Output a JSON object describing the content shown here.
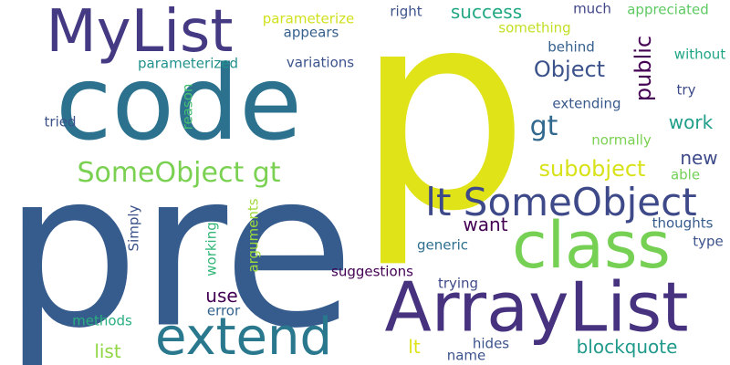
{
  "words": [
    {
      "text": "p",
      "color": "#dfe318"
    },
    {
      "text": "pre",
      "color": "#365c8d"
    },
    {
      "text": "code",
      "color": "#2c728e"
    },
    {
      "text": "ArrayList",
      "color": "#46327e"
    },
    {
      "text": "MyList",
      "color": "#443a83"
    },
    {
      "text": "class",
      "color": "#75d054"
    },
    {
      "text": "extend",
      "color": "#2a788e"
    },
    {
      "text": "lt SomeObject",
      "color": "#3e4989"
    },
    {
      "text": "SomeObject gt",
      "color": "#7ad151"
    },
    {
      "text": "subobject",
      "color": "#d8e219"
    },
    {
      "text": "public",
      "color": "#440154"
    },
    {
      "text": "gt",
      "color": "#31688e"
    },
    {
      "text": "Object",
      "color": "#3b528b"
    },
    {
      "text": "work",
      "color": "#1f9e89"
    },
    {
      "text": "new",
      "color": "#3e4a89"
    },
    {
      "text": "success",
      "color": "#22a884"
    },
    {
      "text": "want",
      "color": "#440154"
    },
    {
      "text": "use",
      "color": "#440154"
    },
    {
      "text": "blockquote",
      "color": "#1f9a8a"
    },
    {
      "text": "lt",
      "color": "#dde318"
    },
    {
      "text": "list",
      "color": "#8fd744"
    },
    {
      "text": "parameterized",
      "color": "#21918c"
    },
    {
      "text": "parameterize",
      "color": "#d0e11c"
    },
    {
      "text": "appears",
      "color": "#355f8d"
    },
    {
      "text": "variations",
      "color": "#3b528b"
    },
    {
      "text": "right",
      "color": "#3b528b"
    },
    {
      "text": "something",
      "color": "#c2df23"
    },
    {
      "text": "much",
      "color": "#414487"
    },
    {
      "text": "appreciated",
      "color": "#5ec962"
    },
    {
      "text": "behind",
      "color": "#355f8d"
    },
    {
      "text": "without",
      "color": "#21a685"
    },
    {
      "text": "try",
      "color": "#3e4989"
    },
    {
      "text": "extending",
      "color": "#38598c"
    },
    {
      "text": "normally",
      "color": "#7ad151"
    },
    {
      "text": "able",
      "color": "#73d056"
    },
    {
      "text": "thoughts",
      "color": "#365c8d"
    },
    {
      "text": "type",
      "color": "#3b528b"
    },
    {
      "text": "generic",
      "color": "#2e6e8e"
    },
    {
      "text": "tried",
      "color": "#3b528b"
    },
    {
      "text": "reason",
      "color": "#44bf70"
    },
    {
      "text": "Simply",
      "color": "#3b528b"
    },
    {
      "text": "working",
      "color": "#35b779"
    },
    {
      "text": "arguments",
      "color": "#9fda3a"
    },
    {
      "text": "suggestions",
      "color": "#440154"
    },
    {
      "text": "trying",
      "color": "#3e4989"
    },
    {
      "text": "error",
      "color": "#33638d"
    },
    {
      "text": "methods",
      "color": "#29af7f"
    },
    {
      "text": "hides",
      "color": "#3b528b"
    },
    {
      "text": "name",
      "color": "#3b528b"
    }
  ]
}
